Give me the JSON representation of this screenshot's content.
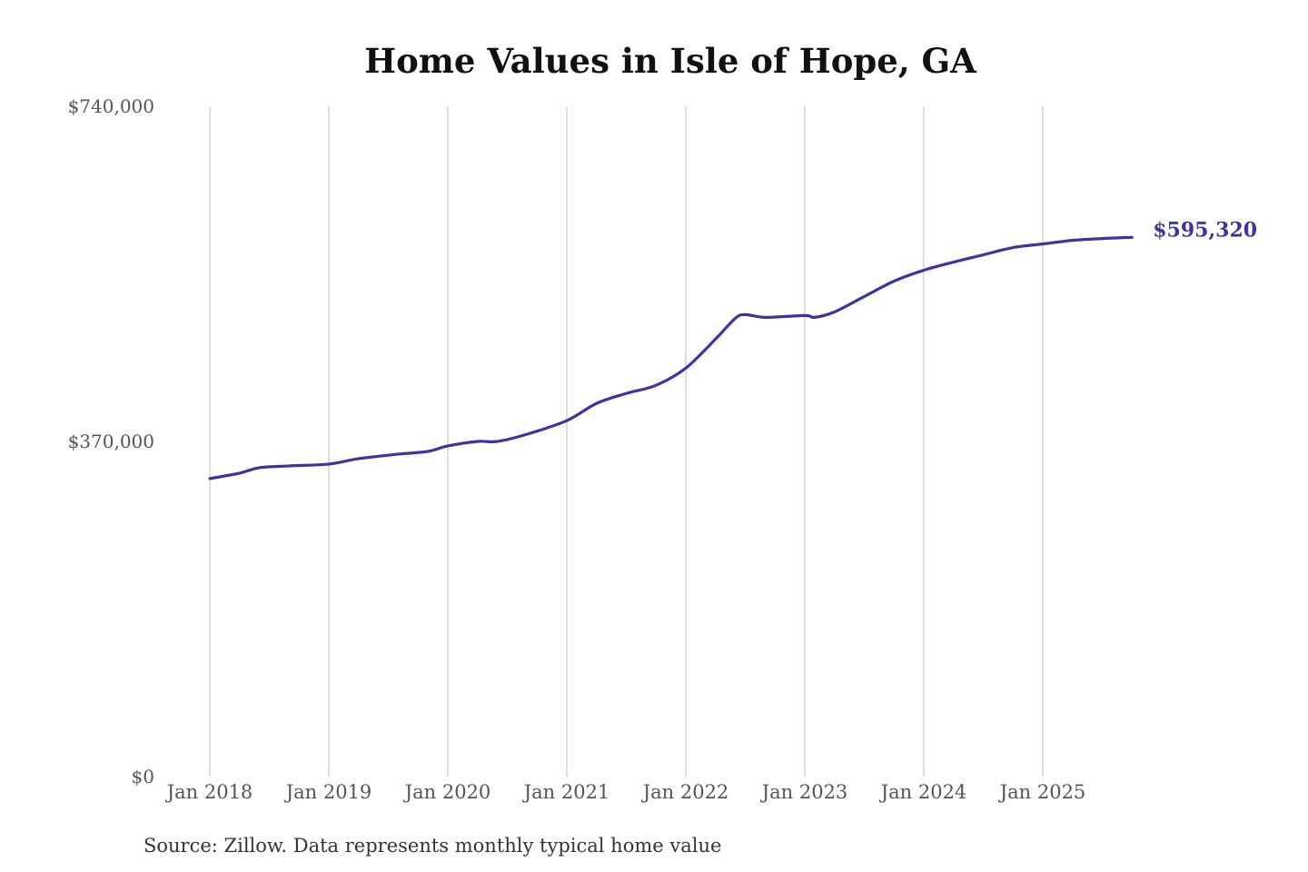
{
  "chart_data": {
    "type": "line",
    "title": "Home Values in Isle of Hope, GA",
    "source": "Source: Zillow. Data represents monthly typical home value",
    "xlabel": "",
    "ylabel": "",
    "ylim": [
      0,
      740000
    ],
    "y_ticks": [
      {
        "value": 0,
        "label": "$0"
      },
      {
        "value": 370000,
        "label": "$370,000"
      },
      {
        "value": 740000,
        "label": "$740,000"
      }
    ],
    "x_ticks": [
      {
        "value": "2018-01",
        "label": "Jan 2018"
      },
      {
        "value": "2019-01",
        "label": "Jan 2019"
      },
      {
        "value": "2020-01",
        "label": "Jan 2020"
      },
      {
        "value": "2021-01",
        "label": "Jan 2021"
      },
      {
        "value": "2022-01",
        "label": "Jan 2022"
      },
      {
        "value": "2023-01",
        "label": "Jan 2023"
      },
      {
        "value": "2024-01",
        "label": "Jan 2024"
      },
      {
        "value": "2025-01",
        "label": "Jan 2025"
      }
    ],
    "grid": "vertical",
    "line_color": "#3a35a0",
    "end_label": "$595,320",
    "x": [
      "2018-01",
      "2018-04",
      "2018-06",
      "2018-09",
      "2019-01",
      "2019-04",
      "2019-08",
      "2019-11",
      "2020-01",
      "2020-04",
      "2020-06",
      "2020-09",
      "2021-01",
      "2021-04",
      "2021-07",
      "2021-10",
      "2022-01",
      "2022-04",
      "2022-06",
      "2022-07",
      "2022-09",
      "2023-01",
      "2023-02",
      "2023-04",
      "2023-07",
      "2023-10",
      "2024-01",
      "2024-04",
      "2024-07",
      "2024-10",
      "2025-01",
      "2025-04",
      "2025-07",
      "2025-10"
    ],
    "values": [
      329000,
      335000,
      341000,
      343000,
      345000,
      351000,
      356000,
      359000,
      365000,
      370000,
      370000,
      378000,
      393000,
      412000,
      423000,
      432000,
      451000,
      483000,
      506000,
      510000,
      507000,
      509000,
      507000,
      513000,
      530000,
      547000,
      559000,
      568000,
      576000,
      584000,
      588000,
      592000,
      594000,
      595320
    ]
  }
}
